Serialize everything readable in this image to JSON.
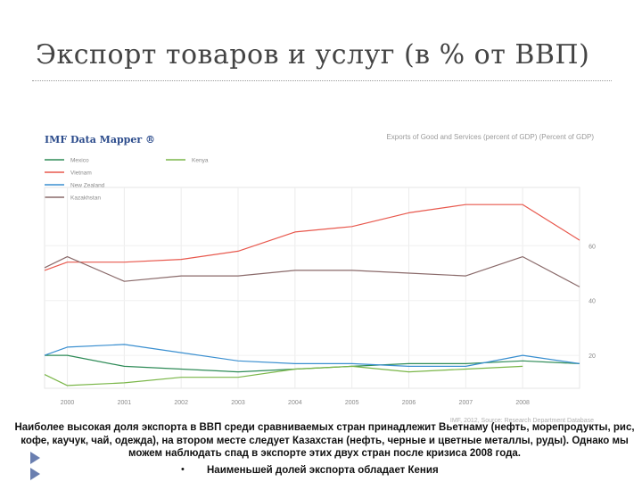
{
  "slide": {
    "title": "Экспорт товаров и услуг (в % от ВВП)",
    "caption": "Наиболее высокая доля экспорта в ВВП среди сравниваемых стран принадлежит Вьетнаму (нефть, морепродукты, рис, кофе, каучук, чай, одежда), на втором месте следует Казахстан (нефть, черные и цветные металлы, руды). Однако мы можем наблюдать спад в экспорте этих двух стран после кризиса 2008 года.",
    "bullet": "Наименьшей долей экспорта обладает Кения"
  },
  "colors": {
    "title": "#444444",
    "mexico": "#2e8b57",
    "vietnam": "#e8584d",
    "new_zealand": "#3a8fd0",
    "kazakhstan": "#8a6a6a",
    "kenya": "#7ab648",
    "bullet_arrow": "#6a7fb0"
  },
  "chart_data": {
    "type": "line",
    "brand": "IMF Data Mapper ®",
    "title": "Exports of Good and Services (percent of GDP) (Percent of GDP)",
    "source": "IMF, 2012, Source: Research Department Database",
    "x": [
      "2000",
      "2001",
      "2002",
      "2003",
      "2004",
      "2005",
      "2006",
      "2007",
      "2008"
    ],
    "xlim": [
      1999.6,
      2009.0
    ],
    "ylim": [
      8,
      78
    ],
    "y_ticks": [
      "20",
      "40",
      "60"
    ],
    "y_tick_values": [
      20,
      40,
      60
    ],
    "grid": true,
    "legend_position": "top-left",
    "series": [
      {
        "name": "Mexico",
        "color": "#2e8b57",
        "points": [
          [
            1999.6,
            20
          ],
          [
            2000,
            20
          ],
          [
            2001,
            16
          ],
          [
            2002,
            15
          ],
          [
            2003,
            14
          ],
          [
            2004,
            15
          ],
          [
            2005,
            16
          ],
          [
            2006,
            17
          ],
          [
            2007,
            17
          ],
          [
            2008,
            18
          ],
          [
            2009.0,
            17
          ]
        ]
      },
      {
        "name": "Vietnam",
        "color": "#e8584d",
        "points": [
          [
            1999.6,
            51
          ],
          [
            2000,
            54
          ],
          [
            2001,
            54
          ],
          [
            2002,
            55
          ],
          [
            2003,
            58
          ],
          [
            2004,
            65
          ],
          [
            2005,
            67
          ],
          [
            2006,
            72
          ],
          [
            2007,
            75
          ],
          [
            2008,
            75
          ],
          [
            2009.0,
            62
          ]
        ]
      },
      {
        "name": "New Zealand",
        "color": "#3a8fd0",
        "points": [
          [
            1999.6,
            20
          ],
          [
            2000,
            23
          ],
          [
            2001,
            24
          ],
          [
            2002,
            21
          ],
          [
            2003,
            18
          ],
          [
            2004,
            17
          ],
          [
            2005,
            17
          ],
          [
            2006,
            16
          ],
          [
            2007,
            16
          ],
          [
            2008,
            20
          ],
          [
            2009.0,
            17
          ]
        ]
      },
      {
        "name": "Kazakhstan",
        "color": "#8a6a6a",
        "points": [
          [
            1999.6,
            52
          ],
          [
            2000,
            56
          ],
          [
            2001,
            47
          ],
          [
            2002,
            49
          ],
          [
            2003,
            49
          ],
          [
            2004,
            51
          ],
          [
            2005,
            51
          ],
          [
            2006,
            50
          ],
          [
            2007,
            49
          ],
          [
            2008,
            56
          ],
          [
            2009.0,
            45
          ]
        ]
      },
      {
        "name": "Kenya",
        "color": "#7ab648",
        "points": [
          [
            1999.6,
            13
          ],
          [
            2000,
            9
          ],
          [
            2001,
            10
          ],
          [
            2002,
            12
          ],
          [
            2003,
            12
          ],
          [
            2004,
            15
          ],
          [
            2005,
            16
          ],
          [
            2006,
            14
          ],
          [
            2007,
            15
          ],
          [
            2008,
            16
          ]
        ]
      }
    ]
  }
}
